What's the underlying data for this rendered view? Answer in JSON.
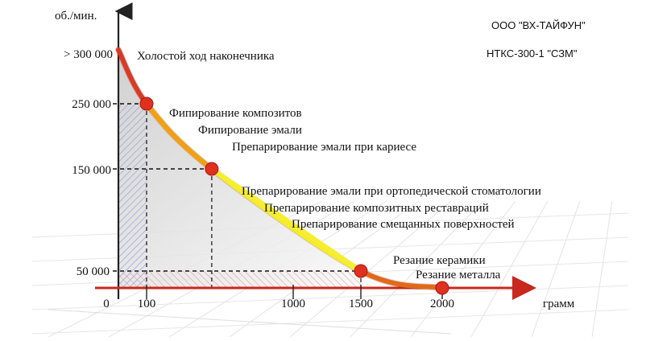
{
  "chart_data": {
    "type": "line",
    "ylabel": "об./мин.",
    "xlabel": "грамм",
    "y_ticks": [
      "> 300 000",
      "250 000",
      "150 000",
      "50 000"
    ],
    "x_ticks": [
      "0",
      "100",
      "1000",
      "1500",
      "2000"
    ],
    "xlim": [
      0,
      2000
    ],
    "ylim": [
      0,
      300000
    ],
    "series": [
      {
        "points": [
          {
            "x": 0,
            "y": 300000
          },
          {
            "x": 100,
            "y": 250000
          },
          {
            "x": 500,
            "y": 150000
          },
          {
            "x": 1500,
            "y": 50000
          },
          {
            "x": 2000,
            "y": 0
          }
        ]
      }
    ],
    "highlight_points": [
      {
        "x": 100,
        "y": 250000
      },
      {
        "x": 500,
        "y": 150000
      },
      {
        "x": 1500,
        "y": 50000
      },
      {
        "x": 2000,
        "y": 0
      }
    ],
    "segment_colors": [
      "#d93a25",
      "#f2a010",
      "#f4ec2a",
      "#e06a18",
      "#c8281e"
    ],
    "point_color": "#e0301e",
    "annotations": [
      "Холостой ход наконечника",
      "Фипирование композитов",
      "Фипирование эмали",
      "Препарирование эмали при кариесе",
      "Препарирование эмали при ортопедической стоматологии",
      "Препарирование композитных реставраций",
      "Препарирование смещанных поверхностей",
      "Резание керамики",
      "Резание металла"
    ],
    "header": [
      "ООО \"ВХ-ТАЙФУН\"",
      "НТКС-300-1 \"СЗМ\""
    ],
    "grid": true
  }
}
